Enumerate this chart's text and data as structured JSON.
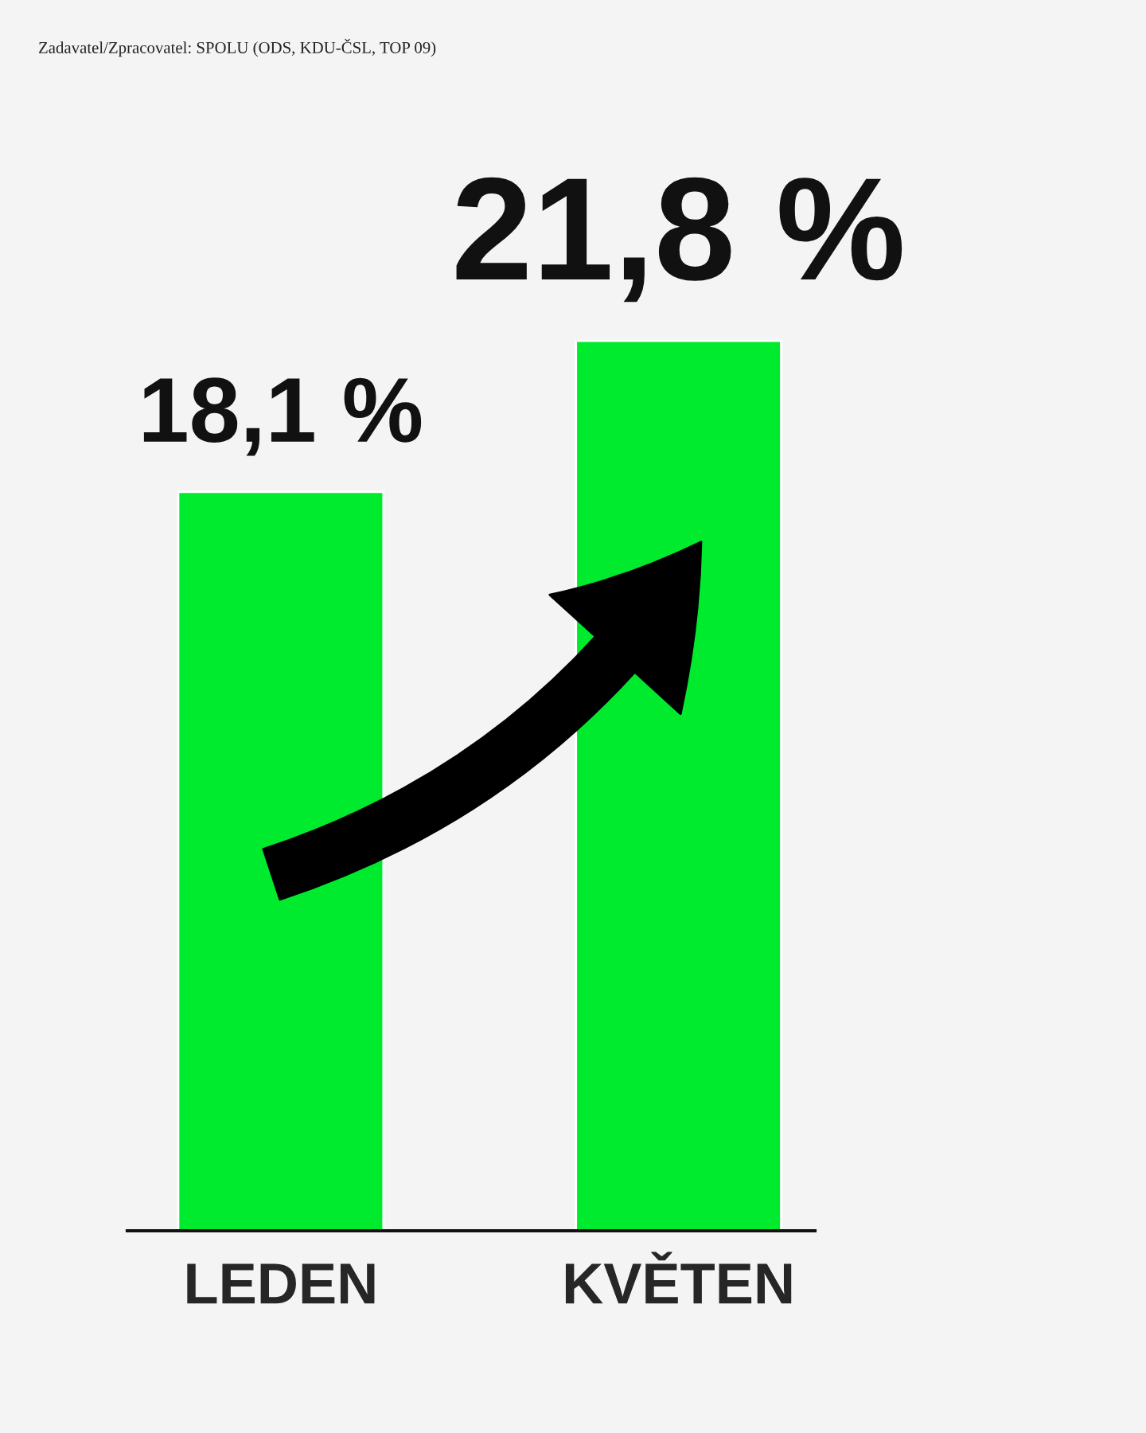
{
  "chart_data": {
    "type": "bar",
    "categories": [
      "LEDEN",
      "KVĚTEN"
    ],
    "values": [
      18.1,
      21.8
    ],
    "value_labels": [
      "18,1 %",
      "21,8 %"
    ],
    "color": "#00ea2e",
    "annotations": [
      "Zadavatel/Zpracovatel: SPOLU (ODS, KDU-ČSL, TOP 09)"
    ]
  }
}
